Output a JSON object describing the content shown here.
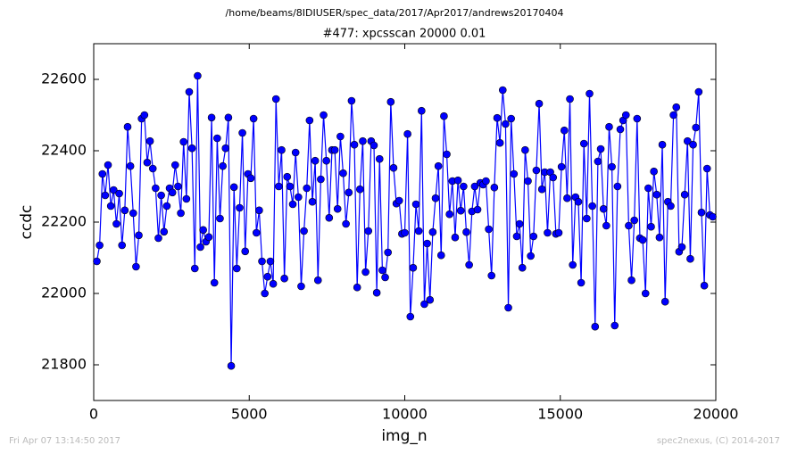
{
  "chart_data": {
    "type": "line",
    "suptitle": "/home/beams/8IDIUSER/spec_data/2017/Apr2017/andrews20170404",
    "title": "#477: xpcsscan 20000 0.01",
    "xlabel": "img_n",
    "ylabel": "ccdc",
    "footer_left": "Fri Apr 07 13:14:50 2017",
    "footer_right": "spec2nexus, (C) 2014-2017",
    "xlim": [
      0,
      20000
    ],
    "ylim": [
      21700,
      22700
    ],
    "xticks": [
      0,
      5000,
      10000,
      15000,
      20000
    ],
    "yticks": [
      21800,
      22000,
      22200,
      22400,
      22600
    ],
    "grid": false,
    "x": [
      100,
      190,
      280,
      370,
      460,
      550,
      640,
      730,
      820,
      910,
      1000,
      1090,
      1180,
      1270,
      1360,
      1450,
      1540,
      1630,
      1720,
      1810,
      1900,
      1990,
      2080,
      2170,
      2260,
      2350,
      2440,
      2530,
      2620,
      2710,
      2800,
      2890,
      2980,
      3070,
      3160,
      3250,
      3340,
      3430,
      3520,
      3610,
      3700,
      3790,
      3880,
      3970,
      4060,
      4150,
      4240,
      4330,
      4420,
      4510,
      4600,
      4690,
      4780,
      4870,
      4960,
      5050,
      5140,
      5230,
      5320,
      5410,
      5500,
      5590,
      5680,
      5770,
      5860,
      5950,
      6040,
      6130,
      6220,
      6310,
      6400,
      6490,
      6580,
      6670,
      6760,
      6850,
      6940,
      7030,
      7120,
      7210,
      7300,
      7390,
      7480,
      7570,
      7660,
      7750,
      7840,
      7930,
      8020,
      8110,
      8200,
      8290,
      8380,
      8470,
      8560,
      8650,
      8740,
      8830,
      8920,
      9010,
      9100,
      9190,
      9280,
      9370,
      9460,
      9550,
      9640,
      9730,
      9820,
      9910,
      10000,
      10090,
      10180,
      10270,
      10360,
      10450,
      10540,
      10630,
      10720,
      10810,
      10900,
      10990,
      11080,
      11170,
      11260,
      11350,
      11440,
      11530,
      11620,
      11710,
      11800,
      11890,
      11980,
      12070,
      12160,
      12250,
      12340,
      12430,
      12520,
      12610,
      12700,
      12790,
      12880,
      12970,
      13060,
      13150,
      13240,
      13330,
      13420,
      13510,
      13600,
      13690,
      13780,
      13870,
      13960,
      14050,
      14140,
      14230,
      14320,
      14410,
      14500,
      14590,
      14680,
      14770,
      14860,
      14950,
      15040,
      15130,
      15220,
      15310,
      15400,
      15490,
      15580,
      15670,
      15760,
      15850,
      15940,
      16030,
      16120,
      16210,
      16300,
      16390,
      16480,
      16570,
      16660,
      16750,
      16840,
      16930,
      17020,
      17110,
      17200,
      17290,
      17380,
      17470,
      17560,
      17650,
      17740,
      17830,
      17920,
      18010,
      18100,
      18190,
      18280,
      18370,
      18460,
      18550,
      18640,
      18730,
      18820,
      18910,
      19000,
      19090,
      19180,
      19270,
      19360,
      19450,
      19540,
      19630,
      19720,
      19810,
      19900
    ],
    "series": [
      {
        "name": "ccdc",
        "color": "#0000ff",
        "values": [
          22090,
          22135,
          22335,
          22275,
          22360,
          22245,
          22290,
          22195,
          22280,
          22135,
          22233,
          22467,
          22357,
          22225,
          22075,
          22163,
          22490,
          22500,
          22367,
          22427,
          22350,
          22295,
          22155,
          22275,
          22173,
          22245,
          22295,
          22283,
          22360,
          22300,
          22225,
          22425,
          22265,
          22565,
          22407,
          22070,
          22610,
          22130,
          22178,
          22145,
          22158,
          22493,
          22030,
          22435,
          22210,
          22357,
          22407,
          22493,
          21797,
          22298,
          22070,
          22240,
          22450,
          22118,
          22335,
          22323,
          22490,
          22170,
          22233,
          22090,
          22000,
          22047,
          22090,
          22027,
          22545,
          22300,
          22402,
          22042,
          22327,
          22300,
          22250,
          22395,
          22270,
          22020,
          22175,
          22295,
          22485,
          22257,
          22372,
          22037,
          22320,
          22500,
          22372,
          22212,
          22402,
          22402,
          22237,
          22440,
          22337,
          22195,
          22283,
          22540,
          22417,
          22017,
          22292,
          22427,
          22060,
          22175,
          22427,
          22415,
          22002,
          22377,
          22065,
          22045,
          22115,
          22537,
          22352,
          22252,
          22260,
          22167,
          22170,
          22447,
          21935,
          22072,
          22250,
          22175,
          22512,
          21970,
          22140,
          21982,
          22172,
          22267,
          22357,
          22107,
          22497,
          22390,
          22222,
          22315,
          22157,
          22317,
          22232,
          22300,
          22172,
          22080,
          22230,
          22300,
          22235,
          22310,
          22305,
          22315,
          22180,
          22050,
          22297,
          22492,
          22422,
          22570,
          22475,
          21960,
          22490,
          22335,
          22160,
          22195,
          22072,
          22402,
          22315,
          22105,
          22160,
          22345,
          22532,
          22292,
          22340,
          22170,
          22340,
          22325,
          22167,
          22170,
          22355,
          22457,
          22267,
          22545,
          22080,
          22270,
          22257,
          22030,
          22420,
          22210,
          22560,
          22245,
          21907,
          22370,
          22405,
          22237,
          22190,
          22467,
          22355,
          21910,
          22300,
          22460,
          22485,
          22500,
          22190,
          22037,
          22205,
          22490,
          22155,
          22150,
          22000,
          22295,
          22187,
          22342,
          22277,
          22157,
          22417,
          21977,
          22257,
          22245,
          22500,
          22522,
          22117,
          22130,
          22277,
          22427,
          22097,
          22417,
          22465,
          22565,
          22227,
          22022,
          22350,
          22220,
          22215
        ]
      }
    ]
  }
}
